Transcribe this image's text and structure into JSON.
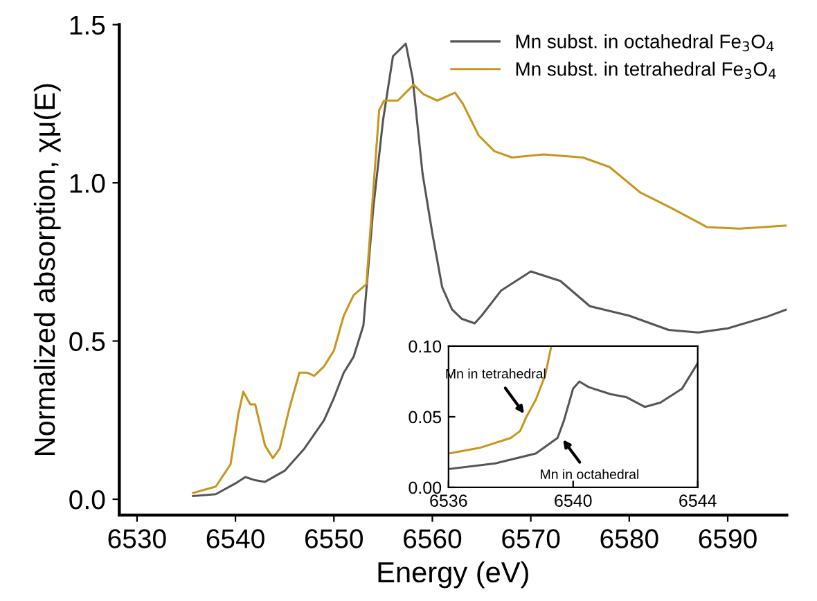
{
  "chart_data": [
    {
      "type": "line",
      "xlabel": "Energy (eV)",
      "ylabel": "Normalized absorption, χμ(E)",
      "xlim": [
        6528.2,
        6596
      ],
      "ylim": [
        -0.05,
        1.5
      ],
      "xticks": [
        6530,
        6540,
        6550,
        6560,
        6570,
        6580,
        6590
      ],
      "yticks": [
        {
          "value": 0,
          "label": "0.0"
        },
        {
          "value": 0.5,
          "label": "0.5"
        },
        {
          "value": 1,
          "label": "1.0"
        },
        {
          "value": 1.5,
          "label": "1.5"
        }
      ],
      "legend": "top right",
      "grid": false,
      "series": [
        {
          "name": "Mn subst. in octahedral Fe$_{3}$O$_{4}$",
          "color": "#555555",
          "x": [
            6535.7,
            6538,
            6540,
            6541,
            6542,
            6543,
            6545,
            6547,
            6549,
            6550,
            6551,
            6552,
            6553,
            6554,
            6555,
            6556,
            6557.3,
            6558,
            6559,
            6560,
            6561,
            6562,
            6563,
            6564.3,
            6565,
            6567,
            6570,
            6573,
            6576,
            6580,
            6584,
            6587,
            6590,
            6594,
            6596
          ],
          "values": [
            0.01,
            0.016,
            0.05,
            0.07,
            0.06,
            0.055,
            0.09,
            0.16,
            0.25,
            0.32,
            0.4,
            0.45,
            0.55,
            0.92,
            1.2,
            1.4,
            1.44,
            1.33,
            1.03,
            0.84,
            0.67,
            0.6,
            0.57,
            0.556,
            0.58,
            0.66,
            0.72,
            0.69,
            0.61,
            0.58,
            0.535,
            0.527,
            0.54,
            0.577,
            0.6
          ]
        },
        {
          "name": "Mn subst. in tetrahedral Fe$_{3}$O$_{4}$",
          "color": "#c8961e",
          "x": [
            6535.7,
            6538,
            6539.5,
            6540.3,
            6540.8,
            6541.5,
            6542,
            6543,
            6543.8,
            6544.5,
            6545.5,
            6546.5,
            6547.3,
            6548,
            6549,
            6550,
            6551,
            6552,
            6553.3,
            6554.6,
            6555.1,
            6556.5,
            6558.1,
            6559.1,
            6560.5,
            6562.3,
            6563.1,
            6564.7,
            6566.3,
            6568.1,
            6571.3,
            6575.3,
            6578,
            6581.1,
            6584.3,
            6587.9,
            6591.2,
            6595.9
          ],
          "values": [
            0.02,
            0.04,
            0.11,
            0.27,
            0.34,
            0.3,
            0.3,
            0.17,
            0.13,
            0.16,
            0.29,
            0.4,
            0.4,
            0.39,
            0.42,
            0.47,
            0.58,
            0.645,
            0.68,
            1.23,
            1.26,
            1.26,
            1.31,
            1.28,
            1.26,
            1.285,
            1.25,
            1.15,
            1.1,
            1.08,
            1.09,
            1.08,
            1.05,
            0.97,
            0.92,
            0.86,
            0.855,
            0.865
          ]
        }
      ]
    },
    {
      "type": "line",
      "xlim": [
        6536,
        6544
      ],
      "ylim": [
        0,
        0.1
      ],
      "xticks": [
        6536,
        6540,
        6544
      ],
      "yticks": [
        {
          "value": 0,
          "label": "0.00"
        },
        {
          "value": 0.05,
          "label": "0.05"
        },
        {
          "value": 0.1,
          "label": "0.10"
        }
      ],
      "grid": false,
      "annotations": [
        {
          "text": "Mn in tetrahedral",
          "x": 6538.5,
          "y": 0.05
        },
        {
          "text": "Mn in octahedral",
          "x": 6539.6,
          "y": 0.036
        }
      ],
      "series": [
        {
          "color": "#c8961e",
          "x": [
            6536,
            6537,
            6538,
            6538.3,
            6538.5,
            6538.8,
            6539.1,
            6539.3
          ],
          "values": [
            0.024,
            0.028,
            0.035,
            0.04,
            0.05,
            0.062,
            0.079,
            0.1
          ]
        },
        {
          "color": "#555555",
          "x": [
            6536,
            6537.5,
            6538.8,
            6539.5,
            6539.7,
            6540,
            6540.2,
            6540.5,
            6541.2,
            6541.7,
            6542.3,
            6542.8,
            6543.5,
            6544
          ],
          "values": [
            0.013,
            0.017,
            0.024,
            0.035,
            0.047,
            0.07,
            0.075,
            0.071,
            0.066,
            0.064,
            0.057,
            0.06,
            0.07,
            0.088
          ]
        }
      ]
    }
  ]
}
